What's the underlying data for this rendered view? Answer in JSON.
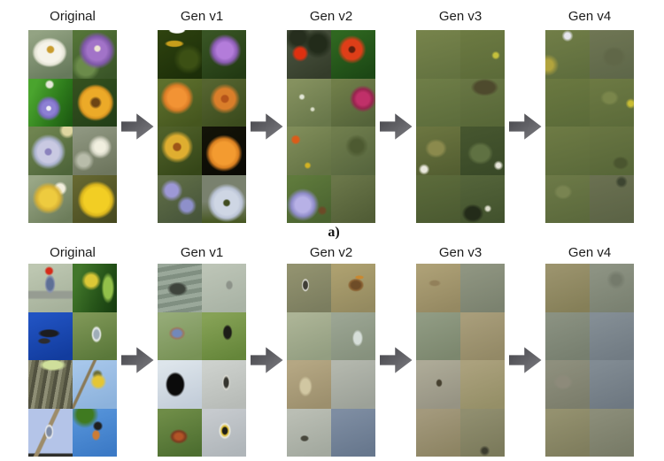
{
  "page": {
    "background": "#ffffff"
  },
  "figure": {
    "arrow": {
      "color_start": "#45454a",
      "color_end": "#7e7e83"
    },
    "label_color": "#1c1c1c",
    "rows": [
      {
        "name": "flowers",
        "caption": "a)",
        "columns": [
          {
            "label": "Original",
            "tiles": [
              "radial-gradient(circle at 50% 40%, #c99c2e 0 8%, transparent 12%), radial-gradient(ellipse 62% 48% at 48% 46%, #f5f3e9 0 42%, #e3e3d4 54%, transparent 64%), linear-gradient(155deg, #93a383 10%, #66795b 90%)",
              "radial-gradient(circle at 56% 38%, #efe6d2 0 6%, transparent 10%), radial-gradient(circle at 55% 42%, #a273c8 0 26%, #7e58a6 38%, transparent 50%), radial-gradient(circle at 30% 75%, #6b8b4a 0 18%, transparent 30%), linear-gradient(145deg, #547438 10%, #3a5528 90%)",
              "radial-gradient(circle at 46% 62%, #f0eef6 0 5%, transparent 8%), radial-gradient(circle at 46% 62%, #8d80d4 0 17%, #7a6cc0 24%, transparent 33%), radial-gradient(circle at 48% 12%, #e6e8da 0 6%, transparent 10%), linear-gradient(115deg, #4aa42e 15%, #2d7a1b 60%, #1d5a12 95%)",
              "radial-gradient(circle at 52% 50%, #6d4414 0 11%, #a8761f 15%, #ecaa28 19% 40%, #d79420 47%, transparent 56%), linear-gradient(145deg, #35521f, #223d17)",
              "radial-gradient(circle at 45% 52%, #8b82bd 0 8%, #c9c9e2 12% 30%, #aab2cc 38%, transparent 50%), radial-gradient(circle at 88% 8%, #ded6a0 0 8%, transparent 14%), linear-gradient(145deg, #6f8450 10%, #4e653a 90%)",
              "radial-gradient(circle at 62% 42%, #f1efdf 0 13%, #d8d8c8 20%, transparent 30%), radial-gradient(circle at 25% 70%, #b8bcaa 0 12%, transparent 22%), linear-gradient(160deg, #8e9680 10%, #6e765e 90%)",
              "radial-gradient(circle at 45% 48%, #eecb3f 0 24%, #d6b136 34%, transparent 46%), radial-gradient(circle at 72% 28%, #f3efde 0 9%, transparent 15%), linear-gradient(145deg, #99a786 10%, #6c7c5a 90%)",
              "radial-gradient(circle at 54% 52%, #f2ce24 0 36%, #d8b41d 45%, transparent 55%), linear-gradient(145deg, #686a32, #45481f)"
            ]
          },
          {
            "label": "Gen v1",
            "tiles": [
              "radial-gradient(ellipse 26% 10% at 44% 0%, #fdfdfd 0 60%, transparent 75%), radial-gradient(ellipse 36% 12% at 38% 28%, #c79e1b 0 45%, transparent 62%), radial-gradient(circle at 70% 60%, #3c5014 0 20%, transparent 35%), linear-gradient(150deg, #2f430f, #1a2c08)",
              "radial-gradient(circle at 52% 42%, #b37cda 0 22%, #8a5cb2 33%, transparent 45%), linear-gradient(150deg, #385424 10%, #223a13 90%)",
              "radial-gradient(circle at 44% 40%, #f29334 0 24%, #da7d26 33%, transparent 44%), linear-gradient(150deg, #5e702d 10%, #45561e 90%)",
              "radial-gradient(circle at 52% 42%, #b5541a 0 9%, #da7e2a 13% 28%, transparent 42%), linear-gradient(150deg, #556430 10%, #3b4b1d 90%)",
              "radial-gradient(circle at 44% 42%, #9e5517 0 9%, #dfae30 13% 30%, transparent 43%), linear-gradient(150deg, #4f6029 10%, #354618 90%)",
              "radial-gradient(circle at 50% 55%, #f39b30 0 32%, #d87f20 42%, transparent 53%), linear-gradient(150deg, #141408, #090904)",
              "radial-gradient(circle at 32% 32%, #9d98d6 0 14%, transparent 25%), radial-gradient(circle at 66% 64%, #8e90ca 0 13%, transparent 23%), linear-gradient(150deg, #606e47 10%, #47553a 90%)",
              "radial-gradient(circle at 56% 58%, #404c20 0 7%, #ced6e4 11% 32%, #bac3d5 41%, transparent 52%), linear-gradient(180deg, #79816e 0 55%, #45561f 100%)"
            ]
          },
          {
            "label": "Gen v2",
            "tiles": [
              "radial-gradient(circle at 30% 48%, #de3010 0 13%, transparent 21%), radial-gradient(circle at 70% 28%, #222b1a 0 18%, transparent 32%), radial-gradient(circle at 25% 15%, #262e1e 0 14%, transparent 26%), linear-gradient(150deg, #4b5440 10%, #343c2a 90%)",
              "radial-gradient(circle at 47% 40%, #5e1e0c 0 7%, #de3e18 11% 26%, transparent 38%), radial-gradient(circle at 38% 54%, #e2c122 0 4%, transparent 8%), linear-gradient(150deg, #2f6720 10%, #1c4815 90%)",
              "radial-gradient(circle at 34% 38%, #e2e6d6 0 4%, transparent 8%), radial-gradient(circle at 58% 64%, #dadec9 0 3%, transparent 7%), linear-gradient(150deg, #85915f 10%, #68774a 90%)",
              "radial-gradient(circle at 72% 42%, #c03069 0 15%, #97244e 23%, transparent 32%), linear-gradient(150deg, #707e49 10%, #54633a 90%)",
              "radial-gradient(circle at 20% 27%, #da5c19 0 6%, transparent 10%), radial-gradient(circle at 47% 80%, #d2b222 0 4%, transparent 8%), linear-gradient(150deg, #7f8c59 10%, #637244 90%)",
              "radial-gradient(circle at 58% 40%, #4d5a31 0 16%, transparent 30%), linear-gradient(150deg, #6f7d4d 10%, #57663e 90%)",
              "radial-gradient(circle at 36% 62%, #b7b1e6 0 18%, #8f8cc9 28%, transparent 40%), radial-gradient(circle at 80% 74%, #6c4a27 0 5%, transparent 10%), linear-gradient(150deg, #5f7a3c 10%, #4a6330 90%)",
              "linear-gradient(150deg, #6a7649 10%, #515d36 90%)"
            ]
          },
          {
            "label": "Gen v3",
            "tiles": [
              "linear-gradient(165deg, #76834b 5%, #637240 95%)",
              "radial-gradient(circle at 80% 52%, #c5c13c 0 5%, transparent 10%), linear-gradient(165deg, #6c7a42 5%, #5c6b39 95%)",
              "linear-gradient(165deg, #6e7d47 5%, #5d6d3c 95%)",
              "radial-gradient(ellipse 55% 32% at 55% 18%, #4e4a2d 0 40%, transparent 58%), linear-gradient(165deg, #687644 5%, #576737 95%)",
              "radial-gradient(circle at 18% 88%, #eae9dd 0 5%, transparent 10%), radial-gradient(ellipse 48% 38% at 45% 45%, #8b8a4d 0 34%, transparent 52%), linear-gradient(165deg, #6b7540 5%, #535e31 95%)",
              "radial-gradient(circle at 86% 80%, #e8e7db 0 4%, transparent 9%), radial-gradient(ellipse 52% 42% at 45% 55%, #5f7142 0 38%, transparent 56%), linear-gradient(165deg, #46562f 5%, #394927 95%)",
              "linear-gradient(165deg, #5c6b3b 5%, #4b5a31 95%)",
              "radial-gradient(ellipse 48% 38% at 28% 80%, #232b19 0 34%, transparent 52%), radial-gradient(circle at 62% 70%, #dedecd 0 4%, transparent 9%), linear-gradient(165deg, #54643a 5%, #42522d 95%)"
            ]
          },
          {
            "label": "Gen v4",
            "tiles": [
              "radial-gradient(circle at 50% 12%, #e6e6ee 0 6%, transparent 12%), radial-gradient(circle at 6% 72%, #b2a43d 0 9%, transparent 20%), linear-gradient(165deg, #707d47 5%, #5e6d3d 95%)",
              "radial-gradient(ellipse 48% 38% at 55% 55%, #606748 0 38%, transparent 58%), linear-gradient(165deg, #6e7553 5%, #5e6749 95%)",
              "linear-gradient(165deg, #6a7840 5%, #5b6b39 95%)",
              "radial-gradient(circle at 93% 52%, #c9bd35 0 5%, transparent 11%), radial-gradient(ellipse 42% 32% at 45% 40%, #7a864b 0 32%, transparent 50%), linear-gradient(165deg, #6c7943 5%, #5c6b3a 95%)",
              "linear-gradient(165deg, #6d7a44 5%, #5c6b3b 95%)",
              "radial-gradient(ellipse 38% 28% at 70% 75%, #4a552f 0 32%, transparent 50%), linear-gradient(165deg, #687542 5%, #576638 95%)",
              "radial-gradient(ellipse 42% 32% at 40% 35%, #798451 0 32%, transparent 50%), linear-gradient(165deg, #6c7947 5%, #5b693c 95%)",
              "radial-gradient(circle at 72% 14%, #3d4531 0 6%, transparent 12%), linear-gradient(165deg, #6a7051 5%, #5b6345 95%)"
            ]
          }
        ]
      },
      {
        "name": "birds",
        "caption": "",
        "columns": [
          {
            "label": "Original",
            "tiles": [
              "radial-gradient(circle at 47% 15%, #d62a18 0 6%, transparent 10%), radial-gradient(ellipse 20% 32% at 49% 42%, #5e7096 0 36%, #8a94ac 50%, transparent 62%), linear-gradient(180deg, rgba(0,0,0,0) 0 54%, #969c92 58% 70%, rgba(0,0,0,0) 74%), linear-gradient(160deg, #bdc7b1 10%, #a6b19b 90%)",
              "radial-gradient(circle at 42% 35%, #dcc836 0 14%, transparent 24%), radial-gradient(ellipse 26% 55% at 80% 50%, #92c04a 0 38%, transparent 58%), linear-gradient(110deg, #41762a 15%, #265419 60%, #173d10 95%)",
              "radial-gradient(ellipse 44% 16% at 47% 44%, #1d1d20 0 42%, transparent 58%), radial-gradient(ellipse 28% 12% at 36% 60%, #2c2c30 0 38%, transparent 56%), linear-gradient(160deg, #2153c2 10%, #123c9e 90%)",
              "radial-gradient(ellipse 20% 30% at 54% 46%, #9fadb8 0 28%, #e9edeb 44%, transparent 60%), linear-gradient(160deg, #7e9656 10%, #5a783a 90%)",
              "radial-gradient(ellipse 55% 22% at 55% 10%, #cfdf9b 0 38%, transparent 58%), repeating-linear-gradient(100deg, #8e8e75 0 4px, #6b6b53 4px 8px, #525240 8px 12px), #75755c",
              "radial-gradient(circle at 58% 44%, #e4c634 0 13%, transparent 22%), radial-gradient(circle at 56% 30%, #6c6f3a 0 7%, transparent 13%), linear-gradient(115deg, rgba(0,0,0,0) 0 30%, #8a7a58 32% 35%, rgba(0,0,0,0) 37%), linear-gradient(160deg, #a6c6ea 10%, #8cb2dc 90%)",
              "radial-gradient(ellipse 16% 26% at 47% 48%, #7e8ca6 0 32%, #eaecee 50%, transparent 64%), linear-gradient(115deg, rgba(0,0,0,0) 0 40%, #9d8c6a 42% 47%, rgba(0,0,0,0) 49%), linear-gradient(180deg, #b4c4e8 0 92%, #2e2e2a 95%)",
              "radial-gradient(circle at 28% 12%, #3f7a20 0 15%, transparent 26%), radial-gradient(circle at 57% 36%, #1f1f1f 0 8%, transparent 13%), radial-gradient(ellipse 18% 22% at 53% 55%, #cb7c36 0 36%, transparent 55%), linear-gradient(160deg, #5694da 10%, #3c7ac6 90%)"
            ]
          },
          {
            "label": "Gen v1",
            "tiles": [
              "radial-gradient(ellipse 42% 26% at 45% 52%, #3e443c 0 38%, transparent 56%), repeating-linear-gradient(170deg, #9aa89a 0 5px, #808f81 5px 10px), #8c9c8e",
              "radial-gradient(ellipse 15% 18% at 62% 44%, #8d938a 0 38%, transparent 58%), linear-gradient(160deg, #bcc4b6 10%, #a9b3a5 90%)",
              "radial-gradient(ellipse 32% 24% at 44% 44%, #7288ba 0 28%, #9b7a60 46%, transparent 60%), linear-gradient(160deg, #94aa76 10%, #789256 90%)",
              "radial-gradient(ellipse 20% 30% at 58% 42%, #1d1d18 0 40%, transparent 56%), linear-gradient(160deg, #86a256 10%, #65863a 90%)",
              "radial-gradient(ellipse 36% 42% at 40% 50%, #0b0b0b 0 50%, transparent 62%), linear-gradient(160deg, #dde5eb 10%, #c3cdd9 90%)",
              "radial-gradient(ellipse 15% 28% at 55% 46%, #35352f 0 32%, #dadad2 50%, transparent 62%), linear-gradient(160deg, #cdd1cd 10%, #b7bbb7 90%)",
              "radial-gradient(ellipse 38% 28% at 48% 58%, #b25427 0 22%, #7d3b1f 40%, transparent 56%), linear-gradient(160deg, #6e8c47 10%, #4d6e30 90%)",
              "radial-gradient(ellipse 24% 30% at 52% 46%, #1d1d18 0 22%, #dab92c 32%, #eaeae2 48%, transparent 60%), linear-gradient(160deg, #c6cace 10%, #afb5b9 90%)"
            ]
          },
          {
            "label": "Gen v2",
            "tiles": [
              "radial-gradient(ellipse 15% 24% at 42% 44%, #403e36 0 32%, #e2e2da 46%, transparent 58%), linear-gradient(160deg, #92926f 10%, #7b7d5f 90%)",
              "radial-gradient(ellipse 32% 24% at 56% 44%, #6e4c27 0 32%, #8c6434 46%, transparent 58%), radial-gradient(ellipse 18% 7% at 64% 28%, #ca882f 0 42%, transparent 60%), linear-gradient(160deg, #ada06f 10%, #948a60 90%)",
              "linear-gradient(160deg, #acb496 10%, #939e81 90%)",
              "radial-gradient(ellipse 22% 32% at 60% 54%, #d6ded9 0 38%, transparent 56%), linear-gradient(160deg, #9ba593 10%, #86917d 90%)",
              "radial-gradient(ellipse 28% 38% at 42% 54%, #d1c7a2 0 38%, transparent 56%), linear-gradient(160deg, #b5a783 10%, #9c8f6d 90%)",
              "linear-gradient(160deg, #b3b7ad 10%, #9ca198 90%)",
              "radial-gradient(ellipse 18% 12% at 40% 62%, #48483d 0 38%, transparent 58%), linear-gradient(160deg, #babeb4 10%, #a3a99f 90%)",
              "linear-gradient(160deg, #7e8da2 10%, #67778d 90%)"
            ]
          },
          {
            "label": "Gen v3",
            "tiles": [
              "radial-gradient(ellipse 28% 14% at 42% 40%, #92805a 0 32%, transparent 52%), linear-gradient(160deg, #ada076 10%, #958962 90%)",
              "linear-gradient(160deg, #8f9581 10%, #7b826f 90%)",
              "linear-gradient(160deg, #909b83 10%, #7c876e 90%)",
              "linear-gradient(160deg, #a89d7a 10%, #938966 90%)",
              "radial-gradient(ellipse 13% 15% at 52% 47%, #46402f 0 38%, transparent 58%), linear-gradient(160deg, #adaa97 10%, #969383 90%)",
              "linear-gradient(160deg, #aba17d 10%, #958f67 90%)",
              "linear-gradient(160deg, #a3997c 10%, #8d8463 90%)",
              "radial-gradient(circle at 55% 88%, #3b3b2d 0 5%, transparent 11%), linear-gradient(160deg, #908e6f 10%, #7b7a5b 90%)"
            ]
          },
          {
            "label": "Gen v4",
            "tiles": [
              "linear-gradient(160deg, #9b936d 10%, #857f58 90%)",
              "radial-gradient(circle at 60% 33%, #747a6b 0 11%, transparent 23%), linear-gradient(160deg, #8d9383 10%, #7a8171 90%)",
              "linear-gradient(160deg, #8a9181 10%, #777f6f 90%)",
              "linear-gradient(160deg, #848e95 10%, #717b83 90%)",
              "radial-gradient(ellipse 38% 28% at 40% 45%, #8d8a7a 0 38%, transparent 58%), linear-gradient(160deg, #8e8f7d 10%, #7b7d6b 90%)",
              "linear-gradient(160deg, #818b93 10%, #6e7881 90%)",
              "linear-gradient(160deg, #94916f 10%, #7f7d5d 90%)",
              "linear-gradient(160deg, #8b8d79 10%, #787b67 90%)"
            ]
          }
        ]
      }
    ]
  }
}
